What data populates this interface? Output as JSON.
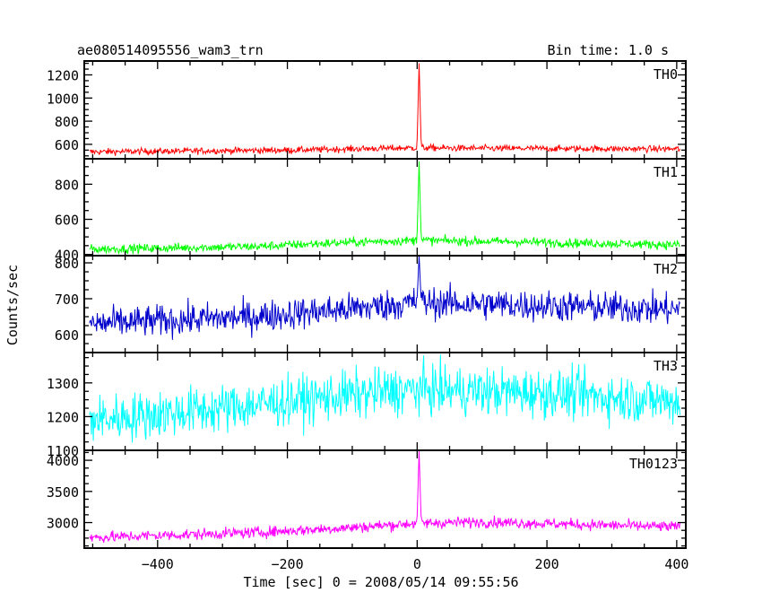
{
  "chart_data": {
    "type": "line",
    "title": "ae080514095556_wam3_trn",
    "subtitle": "Bin time: 1.0 s",
    "xlabel": "Time [sec] 0 = 2008/05/14 09:55:56",
    "ylabel": "Counts/sec",
    "xlim": [
      -513,
      414
    ],
    "x_ticks": [
      -400,
      -200,
      0,
      200,
      400
    ],
    "x_tick_labels": [
      "−400",
      "−200",
      "0",
      "200",
      "400"
    ],
    "grid": false,
    "panels": [
      {
        "name": "TH0",
        "color": "#ff0000",
        "ylim": [
          475,
          1320
        ],
        "y_ticks": [
          600,
          800,
          1000,
          1200
        ],
        "y_tick_labels": [
          "600",
          "800",
          "1000",
          "1200"
        ],
        "x_range": [
          -505,
          405
        ],
        "profile": [
          [
            -500,
            535
          ],
          [
            -200,
            550
          ],
          [
            -100,
            560
          ],
          [
            0,
            570
          ],
          [
            100,
            565
          ],
          [
            400,
            560
          ]
        ],
        "noise": 14,
        "peak": {
          "x": 3,
          "value": 1300
        }
      },
      {
        "name": "TH1",
        "color": "#00ff00",
        "ylim": [
          393,
          945
        ],
        "y_ticks": [
          400,
          600,
          800
        ],
        "y_tick_labels": [
          "400",
          "600",
          "800"
        ],
        "x_range": [
          -505,
          405
        ],
        "profile": [
          [
            -500,
            430
          ],
          [
            -250,
            445
          ],
          [
            -100,
            470
          ],
          [
            0,
            480
          ],
          [
            100,
            475
          ],
          [
            400,
            455
          ]
        ],
        "noise": 13,
        "peak": {
          "x": 3,
          "value": 930
        }
      },
      {
        "name": "TH2",
        "color": "#0000cc",
        "ylim": [
          550,
          820
        ],
        "y_ticks": [
          600,
          700,
          800
        ],
        "y_tick_labels": [
          "600",
          "700",
          "800"
        ],
        "x_range": [
          -505,
          405
        ],
        "profile": [
          [
            -500,
            630
          ],
          [
            -250,
            650
          ],
          [
            -100,
            672
          ],
          [
            0,
            690
          ],
          [
            200,
            680
          ],
          [
            400,
            670
          ]
        ],
        "noise": 22,
        "peak": {
          "x": 3,
          "value": 820
        }
      },
      {
        "name": "TH3",
        "color": "#00ffff",
        "ylim": [
          1100,
          1390
        ],
        "y_ticks": [
          1100,
          1200,
          1300
        ],
        "y_tick_labels": [
          "1100",
          "1200",
          "1300"
        ],
        "x_range": [
          -505,
          405
        ],
        "profile": [
          [
            -500,
            1190
          ],
          [
            -300,
            1225
          ],
          [
            -100,
            1265
          ],
          [
            0,
            1280
          ],
          [
            200,
            1270
          ],
          [
            400,
            1245
          ]
        ],
        "noise": 36,
        "peak": null
      },
      {
        "name": "TH0123",
        "color": "#ff00ff",
        "ylim": [
          2590,
          4160
        ],
        "y_ticks": [
          3000,
          3500,
          4000
        ],
        "y_tick_labels": [
          "3000",
          "3500",
          "4000"
        ],
        "x_range": [
          -505,
          405
        ],
        "profile": [
          [
            -500,
            2760
          ],
          [
            -250,
            2840
          ],
          [
            -100,
            2920
          ],
          [
            0,
            2990
          ],
          [
            100,
            3010
          ],
          [
            400,
            2930
          ]
        ],
        "noise": 45,
        "peak": {
          "x": 3,
          "value": 4150
        }
      }
    ]
  }
}
